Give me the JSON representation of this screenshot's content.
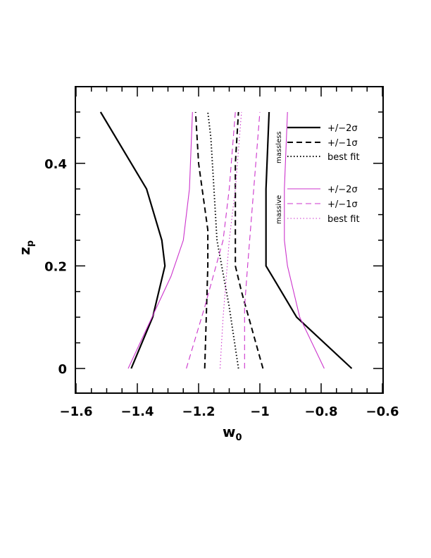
{
  "chart_data": {
    "type": "line",
    "xlabel": "w",
    "xlabel_sub": "0",
    "ylabel": "z",
    "ylabel_sub": "p",
    "xlim": [
      -1.6,
      -0.6
    ],
    "ylim": [
      0,
      0.5
    ],
    "x_ticks": [
      -1.6,
      -1.4,
      -1.2,
      -1,
      -0.8,
      -0.6
    ],
    "x_tick_labels": [
      "−1.6",
      "−1.4",
      "−1.2",
      "−1",
      "−0.8",
      "−0.6"
    ],
    "y_ticks": [
      0,
      0.2,
      0.4
    ],
    "y_tick_labels": [
      "0",
      "0.2",
      "0.4"
    ],
    "legend": {
      "placement": "top-right",
      "groups": [
        {
          "name": "massless",
          "entries": [
            "+/−2σ",
            "+/−1σ",
            "best fit"
          ]
        },
        {
          "name": "massive",
          "entries": [
            "+/−2σ",
            "+/−1σ",
            "best fit"
          ]
        }
      ]
    },
    "colors": {
      "massless": "#000000",
      "massive": "#cc33cc"
    },
    "series": [
      {
        "group": "massless",
        "style": "solid",
        "width": 2.2,
        "name": "+/−2σ",
        "points": [
          [
            -1.42,
            0
          ],
          [
            -1.35,
            0.1
          ],
          [
            -1.31,
            0.2
          ],
          [
            -1.32,
            0.25
          ],
          [
            -1.37,
            0.35
          ],
          [
            -1.52,
            0.5
          ]
        ]
      },
      {
        "group": "massless",
        "style": "solid",
        "width": 2.2,
        "name": "+/−2σ",
        "points": [
          [
            -0.7,
            0
          ],
          [
            -0.88,
            0.1
          ],
          [
            -0.95,
            0.17
          ],
          [
            -0.98,
            0.2
          ],
          [
            -0.98,
            0.25
          ],
          [
            -0.98,
            0.35
          ],
          [
            -0.97,
            0.5
          ]
        ]
      },
      {
        "group": "massless",
        "style": "dashed",
        "width": 2.0,
        "name": "+/−1σ",
        "points": [
          [
            -1.18,
            0
          ],
          [
            -1.17,
            0.2
          ],
          [
            -1.17,
            0.27
          ],
          [
            -1.2,
            0.4
          ],
          [
            -1.21,
            0.5
          ]
        ]
      },
      {
        "group": "massless",
        "style": "dashed",
        "width": 2.0,
        "name": "+/−1σ",
        "points": [
          [
            -0.99,
            0
          ],
          [
            -1.06,
            0.15
          ],
          [
            -1.08,
            0.2
          ],
          [
            -1.08,
            0.3
          ],
          [
            -1.08,
            0.4
          ],
          [
            -1.07,
            0.5
          ]
        ]
      },
      {
        "group": "massless",
        "style": "dotted",
        "width": 2.0,
        "name": "best fit",
        "points": [
          [
            -1.07,
            0
          ],
          [
            -1.1,
            0.12
          ],
          [
            -1.14,
            0.25
          ],
          [
            -1.15,
            0.35
          ],
          [
            -1.16,
            0.45
          ],
          [
            -1.17,
            0.5
          ]
        ]
      },
      {
        "group": "massive",
        "style": "solid",
        "width": 1.1,
        "name": "+/−2σ",
        "points": [
          [
            -1.43,
            0
          ],
          [
            -1.29,
            0.18
          ],
          [
            -1.25,
            0.25
          ],
          [
            -1.23,
            0.35
          ],
          [
            -1.22,
            0.5
          ]
        ]
      },
      {
        "group": "massive",
        "style": "solid",
        "width": 1.1,
        "name": "+/−2σ",
        "points": [
          [
            -0.79,
            0
          ],
          [
            -0.87,
            0.1
          ],
          [
            -0.91,
            0.2
          ],
          [
            -0.92,
            0.25
          ],
          [
            -0.92,
            0.35
          ],
          [
            -0.91,
            0.5
          ]
        ]
      },
      {
        "group": "massive",
        "style": "dashed",
        "width": 1.1,
        "name": "+/−1σ",
        "points": [
          [
            -1.24,
            0
          ],
          [
            -1.18,
            0.12
          ],
          [
            -1.12,
            0.25
          ],
          [
            -1.1,
            0.35
          ],
          [
            -1.08,
            0.5
          ]
        ]
      },
      {
        "group": "massive",
        "style": "dashed",
        "width": 1.1,
        "name": "+/−1σ",
        "points": [
          [
            -1.05,
            0
          ],
          [
            -1.05,
            0.12
          ],
          [
            -1.04,
            0.2
          ],
          [
            -1.02,
            0.35
          ],
          [
            -1.0,
            0.5
          ]
        ]
      },
      {
        "group": "massive",
        "style": "dotted",
        "width": 1.1,
        "name": "best fit",
        "points": [
          [
            -1.13,
            0
          ],
          [
            -1.12,
            0.1
          ],
          [
            -1.1,
            0.25
          ],
          [
            -1.08,
            0.35
          ],
          [
            -1.06,
            0.5
          ]
        ]
      }
    ]
  }
}
